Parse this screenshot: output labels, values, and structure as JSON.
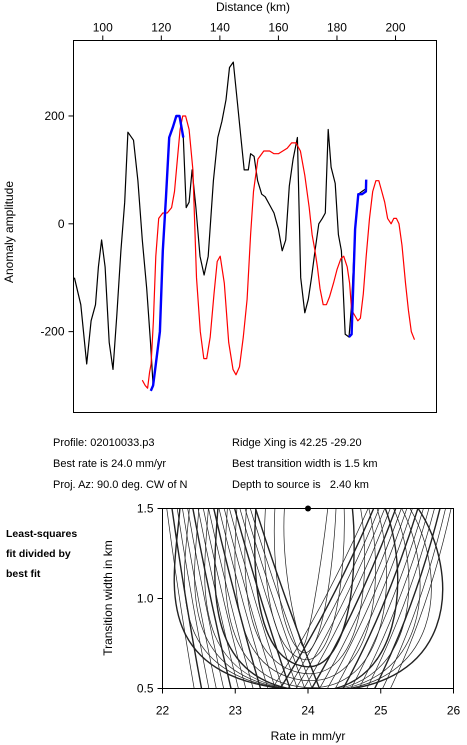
{
  "chart_data": [
    {
      "type": "line",
      "xlabel": "Distance (km)",
      "ylabel": "Anomaly amplitude",
      "xlim": [
        90,
        214
      ],
      "ylim": [
        -350,
        340
      ],
      "x_ticks": [
        "100",
        "120",
        "140",
        "160",
        "180",
        "200"
      ],
      "x_tick_values": [
        100,
        120,
        140,
        160,
        180,
        200
      ],
      "y_ticks": [
        "200",
        "0",
        "-200"
      ],
      "y_tick_values": [
        200,
        0,
        -200
      ],
      "x_axis_position": "top",
      "grid": false,
      "series": [
        {
          "color": "#000000",
          "x": [
            90.3,
            92.5,
            94.5,
            96,
            97.5,
            98.5,
            99.6,
            100.8,
            102.2,
            103.5,
            104.8,
            106.2,
            107.5,
            108.6,
            110.5,
            112,
            113.5,
            115,
            116.3,
            117.2,
            118,
            119.5,
            120.5,
            121.6,
            122.7,
            124,
            125.1,
            126.2,
            127.5,
            128.5,
            129.5,
            130.5,
            131.8,
            133.2,
            134.6,
            136,
            137.8,
            139.3,
            140.7,
            142.1,
            143.3,
            144.6,
            146,
            147.2,
            148.3,
            149.2,
            149.7,
            150.5,
            151.7,
            152.9,
            154.3,
            155.5,
            157,
            158.5,
            160,
            161.3,
            162.5,
            163.7,
            165,
            166.5,
            167.6,
            169,
            170.2,
            171.3,
            172.5,
            173.8,
            175,
            176,
            177,
            178,
            179.4,
            180.5,
            181.5,
            182.8,
            184.1,
            185,
            186.2,
            187.3,
            188.5,
            189.9
          ],
          "values": [
            -100,
            -150,
            -260,
            -180,
            -150,
            -80,
            -30,
            -80,
            -220,
            -270,
            -170,
            -50,
            40,
            170,
            155,
            80,
            -30,
            -120,
            -220,
            -300,
            -265,
            -200,
            -50,
            50,
            160,
            180,
            200,
            200,
            160,
            30,
            40,
            100,
            30,
            -60,
            -95,
            -60,
            80,
            160,
            190,
            230,
            290,
            300,
            225,
            160,
            100,
            100,
            100,
            130,
            125,
            80,
            55,
            50,
            35,
            20,
            -10,
            -50,
            -30,
            70,
            120,
            160,
            -100,
            -165,
            -140,
            -100,
            -50,
            0,
            10,
            20,
            175,
            105,
            75,
            -20,
            -50,
            -205,
            -210,
            -150,
            -10,
            55,
            60,
            65
          ]
        },
        {
          "color": "#0000ff",
          "segments": [
            {
              "x": [
                116.4,
                117.2,
                118,
                119.5,
                120.5,
                121.6,
                122.7,
                124,
                125.1,
                126.2,
                127.5
              ],
              "values": [
                -310,
                -300,
                -265,
                -200,
                -50,
                50,
                160,
                180,
                200,
                200,
                160
              ]
            },
            {
              "x": [
                184.1,
                185,
                186.2,
                187.3,
                188.5,
                189.9,
                190
              ],
              "values": [
                -210,
                -205,
                -10,
                55,
                55,
                60,
                82
              ]
            }
          ]
        },
        {
          "color": "#ff0000",
          "x": [
            113.5,
            114.5,
            115.3,
            116,
            116.5,
            117.3,
            118.1,
            119.1,
            120.5,
            122,
            123.5,
            124.5,
            125.5,
            126.4,
            127.3,
            128.3,
            129.5,
            130.8,
            132,
            133.3,
            134.5,
            135.5,
            136.7,
            138,
            139.1,
            140.1,
            141.5,
            143,
            144.5,
            145.5,
            146.7,
            148,
            149.3,
            150.5,
            151.5,
            153,
            155,
            157,
            158.5,
            160,
            161.5,
            163,
            164.5,
            166,
            167.5,
            169,
            170.5,
            171.5,
            172.5,
            173.3,
            174.2,
            175.3,
            176.4,
            177.5,
            178.8,
            180,
            181.3,
            182.3,
            183.5,
            184.3,
            185,
            186.1,
            187.1,
            188,
            189,
            190,
            191.1,
            192.2,
            193.3,
            194.3,
            195.3,
            196.3,
            197.3,
            198.5,
            199.4,
            200.3,
            201.2,
            202.2,
            203.4,
            204.4,
            205.4,
            206.5
          ],
          "values": [
            -290,
            -300,
            -305,
            -275,
            -260,
            -180,
            -60,
            10,
            20,
            20,
            30,
            60,
            120,
            175,
            200,
            200,
            175,
            100,
            -100,
            -200,
            -250,
            -250,
            -210,
            -130,
            -70,
            -60,
            -110,
            -220,
            -270,
            -280,
            -265,
            -210,
            -140,
            -20,
            60,
            120,
            135,
            135,
            130,
            130,
            135,
            140,
            150,
            150,
            135,
            90,
            30,
            -20,
            -50,
            -80,
            -120,
            -150,
            -150,
            -135,
            -110,
            -85,
            -65,
            -60,
            -80,
            -110,
            -160,
            -170,
            -180,
            -175,
            -130,
            -60,
            10,
            60,
            80,
            80,
            60,
            40,
            10,
            0,
            10,
            10,
            0,
            -40,
            -110,
            -160,
            -200,
            -215
          ]
        }
      ]
    },
    {
      "type": "contour",
      "xlabel": "Rate in mm/yr",
      "ylabel": "Transition width in km",
      "xlim": [
        22,
        26
      ],
      "ylim": [
        0.5,
        1.5
      ],
      "x_ticks": [
        "22",
        "23",
        "24",
        "25",
        "26"
      ],
      "x_tick_values": [
        22,
        23,
        24,
        25,
        26
      ],
      "y_ticks": [
        "1.5",
        "1.0",
        "0.5"
      ],
      "y_tick_values": [
        1.5,
        1.0,
        0.5
      ],
      "best_fit_marker": {
        "x": 24.0,
        "y": 1.5
      }
    }
  ],
  "info": {
    "profile": "Profile: 02010033.p3",
    "best_rate": "Best rate is 24.0 mm/yr",
    "proj_az": "Proj. Az: 90.0 deg. CW of N",
    "ridge_xing": "Ridge Xing is 42.25 -29.20",
    "transition_width": "Best transition width is 1.5 km",
    "depth": "Depth to source is   2.40 km"
  },
  "side_note": [
    "Least-squares",
    "fit divided by",
    "best fit"
  ]
}
